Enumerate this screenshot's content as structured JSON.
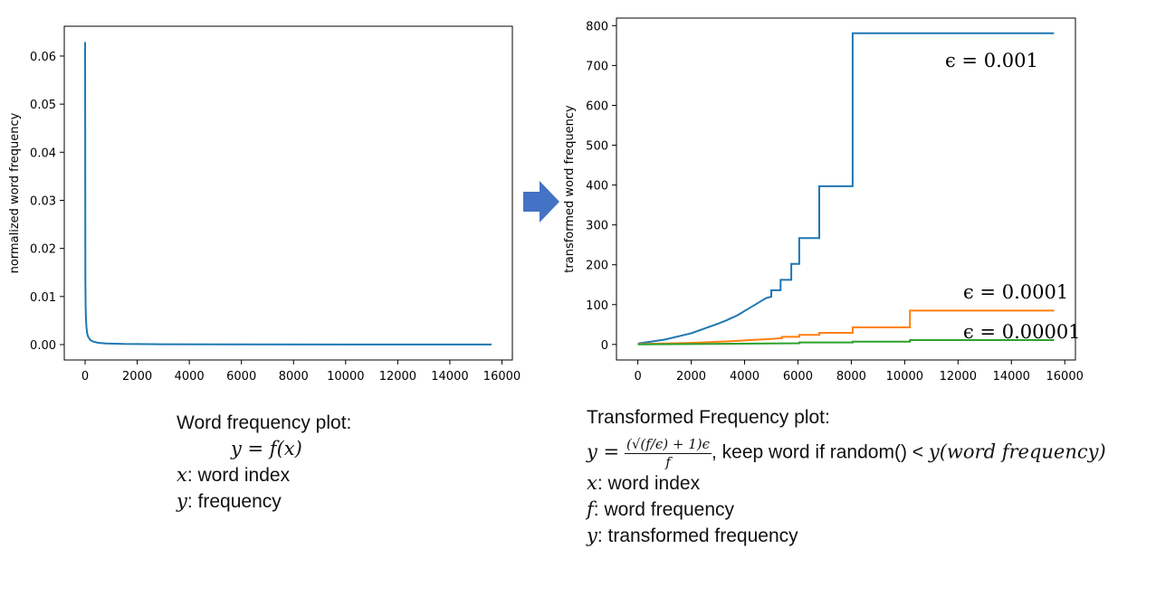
{
  "chart_data": [
    {
      "type": "line",
      "title": "",
      "xlabel": "",
      "ylabel": "normalized word frequency",
      "xlim": [
        -800,
        16400
      ],
      "ylim": [
        -0.0032,
        0.0662
      ],
      "xticks": [
        0,
        2000,
        4000,
        6000,
        8000,
        10000,
        12000,
        14000,
        16000
      ],
      "xtick_labels": [
        "0",
        "2000",
        "4000",
        "6000",
        "8000",
        "10000",
        "12000",
        "14000",
        "16000"
      ],
      "yticks": [
        0.0,
        0.01,
        0.02,
        0.03,
        0.04,
        0.05,
        0.06
      ],
      "ytick_labels": [
        "0.00",
        "0.01",
        "0.02",
        "0.03",
        "0.04",
        "0.05",
        "0.06"
      ],
      "grid": false,
      "series": [
        {
          "color": "#1f77b4",
          "x": [
            0,
            10,
            20,
            30,
            50,
            80,
            120,
            200,
            300,
            500,
            800,
            1500,
            3000,
            6000,
            10000,
            15600
          ],
          "y": [
            0.0629,
            0.0133,
            0.0079,
            0.0057,
            0.0036,
            0.0023,
            0.0016,
            0.00095,
            0.00063,
            0.00038,
            0.00024,
            0.00013,
            7e-05,
            4e-05,
            2e-05,
            1e-05
          ]
        }
      ]
    },
    {
      "type": "line",
      "title": "",
      "xlabel": "",
      "ylabel": "transformed word frequency",
      "xlim": [
        -800,
        16400
      ],
      "ylim": [
        -39,
        819
      ],
      "xticks": [
        0,
        2000,
        4000,
        6000,
        8000,
        10000,
        12000,
        14000,
        16000
      ],
      "xtick_labels": [
        "0",
        "2000",
        "4000",
        "6000",
        "8000",
        "10000",
        "12000",
        "14000",
        "16000"
      ],
      "yticks": [
        0,
        100,
        200,
        300,
        400,
        500,
        600,
        700,
        800
      ],
      "ytick_labels": [
        "0",
        "100",
        "200",
        "300",
        "400",
        "500",
        "600",
        "700",
        "800"
      ],
      "grid": false,
      "series": [
        {
          "label": "ϵ = 0.001",
          "color": "#1f77b4",
          "x": [
            0,
            1000,
            2000,
            2500,
            3000,
            3300,
            3500,
            3700,
            3850,
            4000,
            4200,
            4400,
            4600,
            4800,
            5000,
            5000,
            5350,
            5350,
            5750,
            5750,
            6050,
            6050,
            6800,
            6800,
            8050,
            8050,
            10200,
            10200,
            15600
          ],
          "y": [
            2,
            12,
            28,
            40,
            52,
            60,
            66,
            72,
            78,
            84,
            92,
            100,
            108,
            116,
            120,
            136,
            136,
            162,
            162,
            202,
            202,
            267,
            267,
            397,
            397,
            781,
            781,
            781,
            781
          ]
        },
        {
          "label": "ϵ = 0.0001",
          "color": "#ff7f0e",
          "x": [
            0,
            2000,
            3500,
            4500,
            5000,
            5400,
            5400,
            6050,
            6050,
            6800,
            6800,
            8050,
            8050,
            10200,
            10200,
            15600
          ],
          "y": [
            1,
            4,
            8,
            12,
            14,
            16,
            19,
            19,
            24,
            24,
            29,
            29,
            43,
            43,
            85,
            85
          ]
        },
        {
          "label": "ϵ = 0.00001",
          "color": "#2ca02c",
          "x": [
            0,
            6050,
            6050,
            8050,
            8050,
            10200,
            10200,
            15600
          ],
          "y": [
            0,
            3,
            5,
            5,
            7,
            7,
            11,
            11
          ]
        }
      ]
    }
  ],
  "captions": {
    "left": {
      "title": "Word frequency plot:",
      "formula": "y = f(x)",
      "x_var": "x",
      "x_desc": ": word index",
      "y_var": "y",
      "y_desc": ": frequency"
    },
    "right": {
      "title": "Transformed Frequency plot:",
      "formula_lhs": "y =",
      "formula_num": "(√(f/ϵ) + 1)ϵ",
      "formula_den": "f",
      "formula_tail": ", keep word if random() < ",
      "formula_tail_math": "y(word frequency)",
      "x_var": "x",
      "x_desc": ": word index",
      "f_var": "f",
      "f_desc": ": word frequency",
      "y_var": "y",
      "y_desc": ": transformed frequency"
    }
  },
  "arrow": {
    "icon": "right-arrow-icon",
    "color": "#4472c4"
  }
}
